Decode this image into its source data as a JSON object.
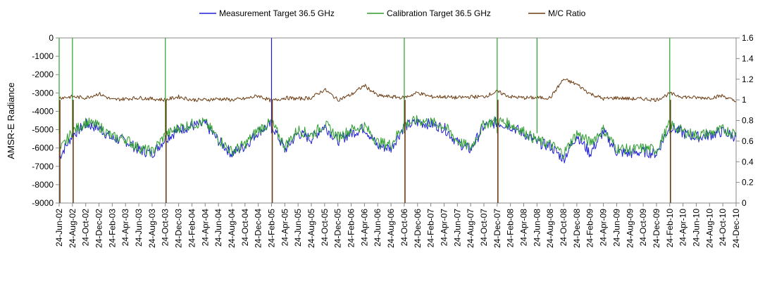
{
  "chart_data": {
    "type": "line",
    "title": "",
    "xlabel": "",
    "ylabel": "AMSR-E Radiance",
    "ylim": [
      -9000,
      0
    ],
    "y2lim": [
      0,
      1.6
    ],
    "y_ticks": [
      0,
      -1000,
      -2000,
      -3000,
      -4000,
      -5000,
      -6000,
      -7000,
      -8000,
      -9000
    ],
    "y2_ticks": [
      "1.6",
      "1.4",
      "1.2",
      "1",
      "0.8",
      "0.6",
      "0.4",
      "0.2",
      "0"
    ],
    "x_ticks": [
      "24-Jun-02",
      "24-Aug-02",
      "24-Oct-02",
      "24-Dec-02",
      "24-Feb-03",
      "24-Apr-03",
      "24-Jun-03",
      "24-Aug-03",
      "24-Oct-03",
      "24-Dec-03",
      "24-Feb-04",
      "24-Apr-04",
      "24-Jun-04",
      "24-Aug-04",
      "24-Oct-04",
      "24-Dec-04",
      "24-Feb-05",
      "24-Apr-05",
      "24-Jun-05",
      "24-Aug-05",
      "24-Oct-05",
      "24-Dec-05",
      "24-Feb-06",
      "24-Apr-06",
      "24-Jun-06",
      "24-Aug-06",
      "24-Oct-06",
      "24-Dec-06",
      "24-Feb-07",
      "24-Apr-07",
      "24-Jun-07",
      "24-Aug-07",
      "24-Oct-07",
      "24-Dec-07",
      "24-Feb-08",
      "24-Apr-08",
      "24-Jun-08",
      "24-Aug-08",
      "24-Oct-08",
      "24-Dec-08",
      "24-Feb-09",
      "24-Apr-09",
      "24-Jun-09",
      "24-Aug-09",
      "24-Oct-09",
      "24-Dec-09",
      "24-Feb-10",
      "24-Apr-10",
      "24-Jun-10",
      "24-Aug-10",
      "24-Oct-10",
      "24-Dec-10"
    ],
    "grid": false,
    "legend_position": "top",
    "series": [
      {
        "name": "Measurement Target 36.5 GHz",
        "axis": "left",
        "color": "#1f1fd6",
        "values": [
          -6500,
          -5300,
          -4700,
          -4900,
          -5500,
          -5600,
          -6100,
          -6300,
          -5500,
          -5000,
          -4800,
          -4700,
          -5600,
          -6300,
          -5900,
          -5100,
          -4700,
          -6100,
          -5200,
          -5500,
          -4800,
          -5600,
          -5200,
          -4900,
          -5900,
          -6000,
          -4800,
          -4600,
          -4700,
          -4900,
          -5700,
          -6100,
          -4800,
          -4600,
          -4800,
          -5200,
          -5700,
          -5900,
          -6600,
          -5300,
          -6300,
          -5100,
          -6200,
          -6300,
          -6200,
          -6300,
          -4800,
          -5200,
          -5400,
          -5300,
          -5100,
          -5400
        ]
      },
      {
        "name": "Calibration Target 36.5 GHz",
        "axis": "left",
        "color": "#2e9e2e",
        "values": [
          -6200,
          -5100,
          -4600,
          -4800,
          -5400,
          -5500,
          -6000,
          -6200,
          -5300,
          -4900,
          -4700,
          -4600,
          -5500,
          -6200,
          -5800,
          -5000,
          -4600,
          -5900,
          -5000,
          -5300,
          -4700,
          -5400,
          -5000,
          -4800,
          -5700,
          -5800,
          -4700,
          -4500,
          -4600,
          -4800,
          -5600,
          -6000,
          -4700,
          -4500,
          -4700,
          -5100,
          -5600,
          -5800,
          -6300,
          -5200,
          -5700,
          -5000,
          -6000,
          -6100,
          -6000,
          -6100,
          -4700,
          -5100,
          -5300,
          -5200,
          -5000,
          -5200
        ]
      },
      {
        "name": "M/C Ratio",
        "axis": "right",
        "color": "#6b3a10",
        "values": [
          1.02,
          1.03,
          1.02,
          1.06,
          1.0,
          1.01,
          1.02,
          1.01,
          1.0,
          1.03,
          1.0,
          1.0,
          1.01,
          1.0,
          1.01,
          1.04,
          0.99,
          1.02,
          1.01,
          1.02,
          1.1,
          1.0,
          1.05,
          1.14,
          1.04,
          1.03,
          1.02,
          1.07,
          1.03,
          1.03,
          1.02,
          1.03,
          1.03,
          1.08,
          1.03,
          1.02,
          1.02,
          1.02,
          1.2,
          1.15,
          1.06,
          1.01,
          1.02,
          1.01,
          1.01,
          1.0,
          1.06,
          1.03,
          1.02,
          1.02,
          1.04,
          0.98
        ]
      }
    ],
    "spikes": {
      "measurement": [
        "24-Feb-05"
      ],
      "calibration": [
        "24-Jun-02",
        "24-Aug-02",
        "24-Oct-03",
        "24-Oct-06",
        "24-Dec-07",
        "24-Jun-08",
        "24-Feb-10"
      ],
      "ratio_drops": [
        "24-Jun-02",
        "24-Aug-02",
        "24-Oct-03",
        "24-Feb-05",
        "24-Oct-06",
        "24-Dec-07",
        "24-Feb-10"
      ]
    }
  }
}
